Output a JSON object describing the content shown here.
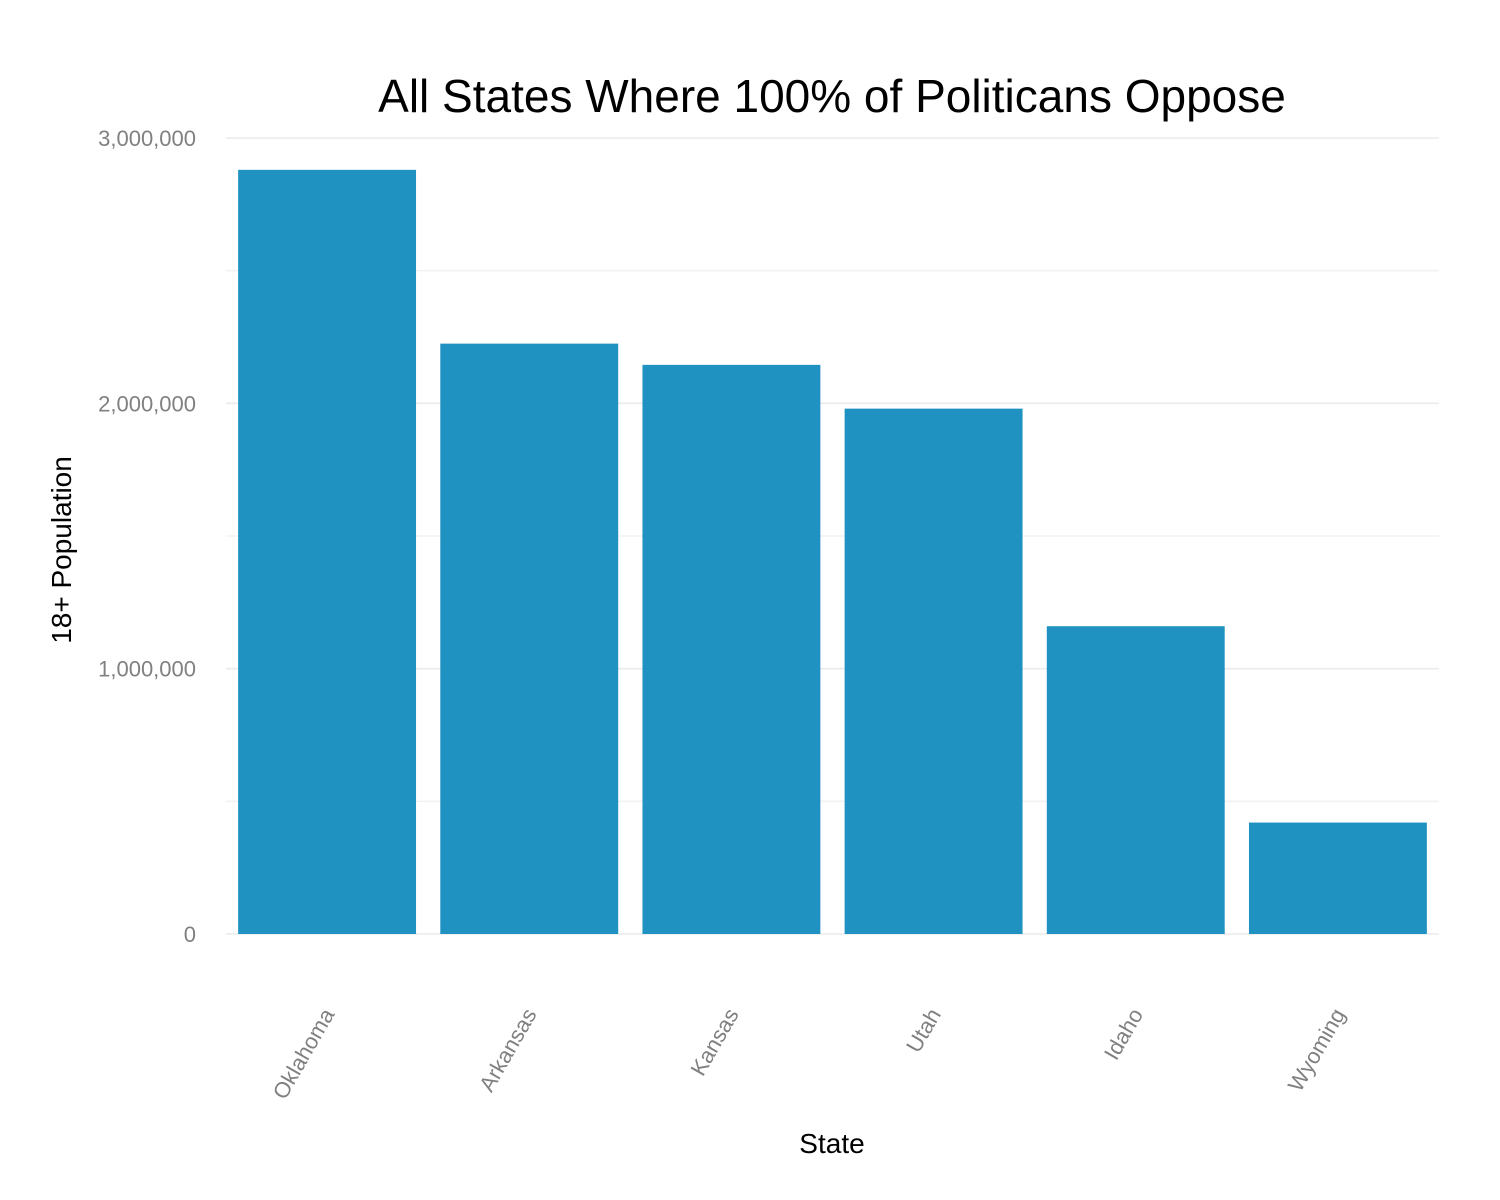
{
  "chart_data": {
    "type": "bar",
    "title": "All States Where 100% of Politicans Oppose",
    "xlabel": "State",
    "ylabel": "18+ Population",
    "categories": [
      "Oklahoma",
      "Arkansas",
      "Kansas",
      "Utah",
      "Idaho",
      "Wyoming"
    ],
    "values": [
      2880000,
      2225000,
      2145000,
      1980000,
      1160000,
      420000
    ],
    "ylim": [
      0,
      3000000
    ],
    "yticks": [
      0,
      1000000,
      2000000,
      3000000
    ],
    "ytick_labels": [
      "0",
      "1,000,000",
      "2,000,000",
      "3,000,000"
    ],
    "grid": true,
    "legend": "none",
    "bar_color": "#1f92c1"
  }
}
